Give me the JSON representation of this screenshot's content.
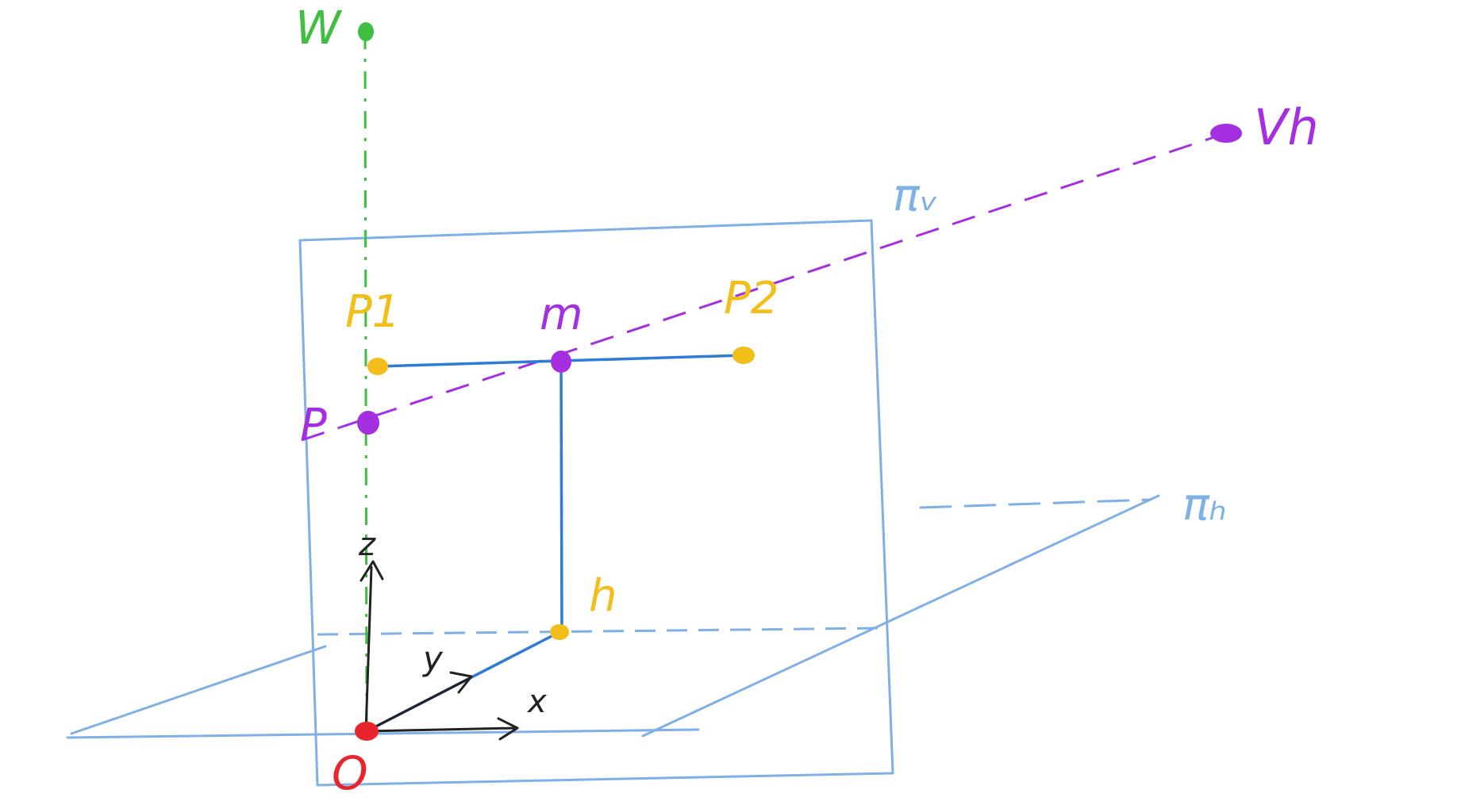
{
  "colors": {
    "background": "#ffffff",
    "planes": "#7fb0e6",
    "blue_segments": "#2f7bd8",
    "green_vertical": "#3fbf3f",
    "purple": "#a52ee0",
    "yellow": "#f3bd1a",
    "origin_red": "#e8242c",
    "axes_black": "#222222"
  },
  "labels": {
    "vertical_vanishing_point": "W",
    "horizontal_vanishing_point": "Vh",
    "plane_v": "πᵥ",
    "plane_h": "πₕ",
    "p1": "P1",
    "p2": "P2",
    "midpoint": "m",
    "p": "P",
    "h": "h",
    "origin": "O",
    "axis_z": "z",
    "axis_y": "y",
    "axis_x": "x"
  }
}
